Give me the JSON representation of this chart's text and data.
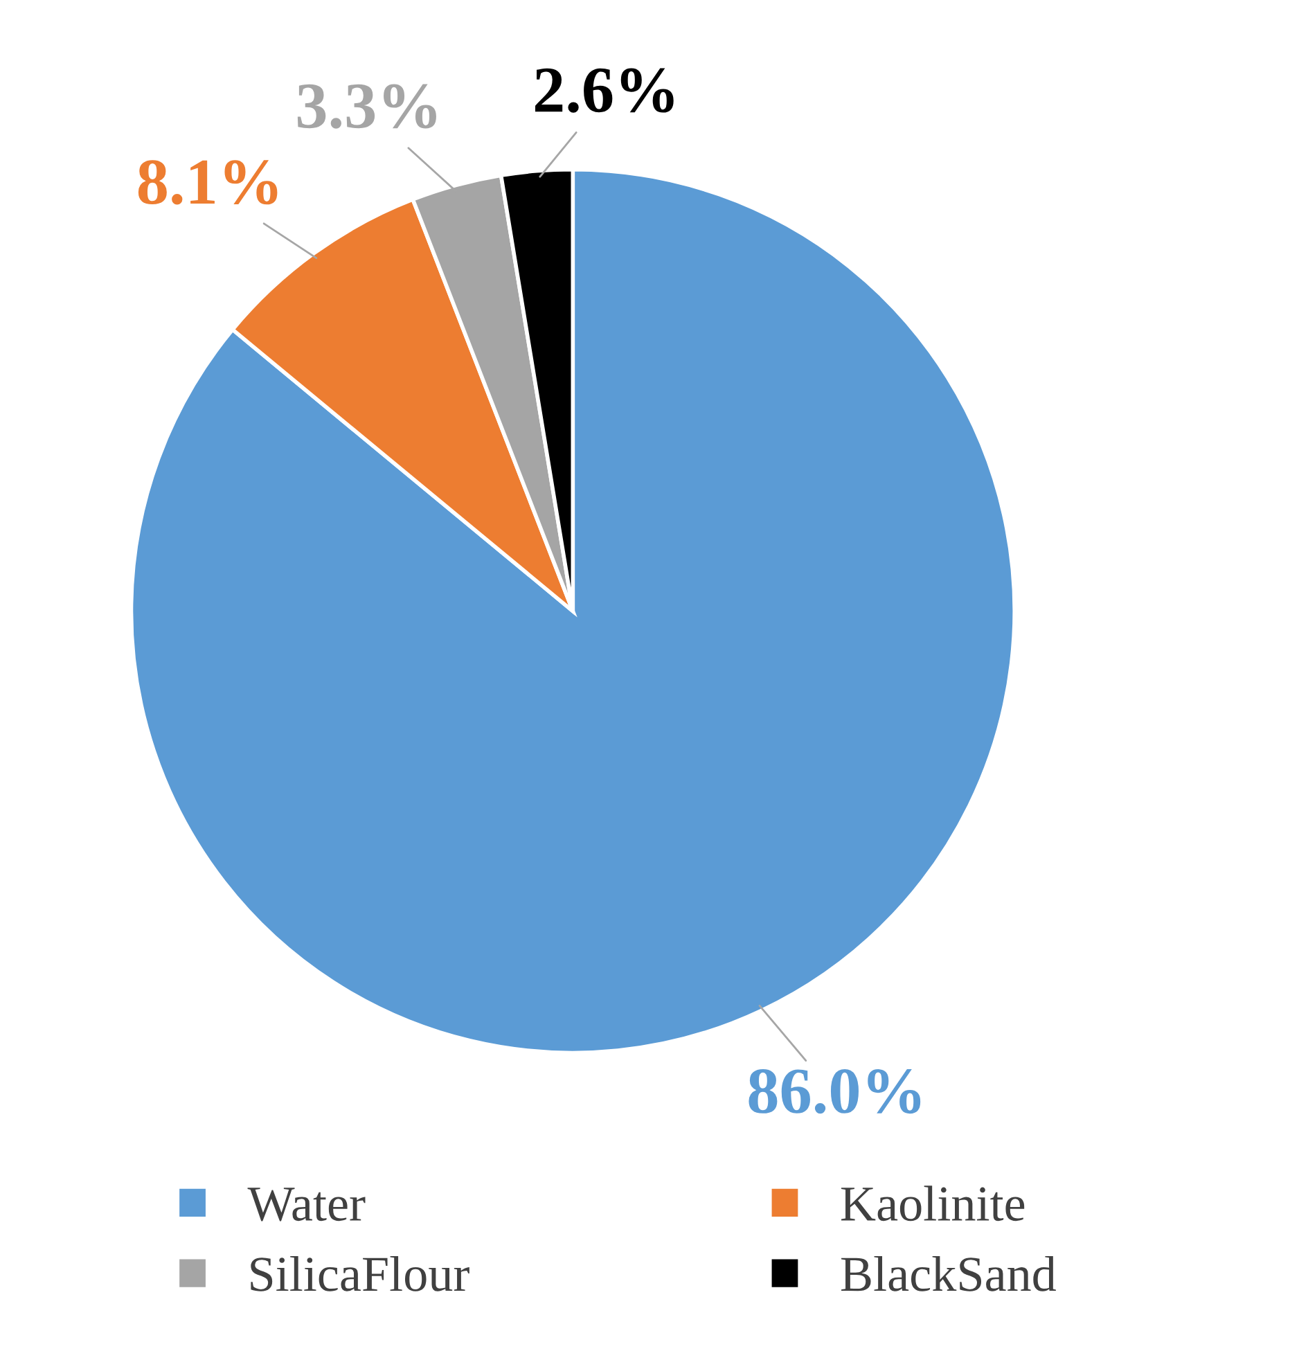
{
  "chart_data": {
    "type": "pie",
    "categories": [
      "Water",
      "Kaolinite",
      "SilicaFlour",
      "BlackSand"
    ],
    "values": [
      86.0,
      8.1,
      3.3,
      2.6
    ],
    "value_labels": [
      "86.0%",
      "8.1%",
      "3.3%",
      "2.6%"
    ],
    "colors": [
      "#5b9bd5",
      "#ed7d31",
      "#a5a5a5",
      "#000000"
    ],
    "legend": "bottom"
  }
}
